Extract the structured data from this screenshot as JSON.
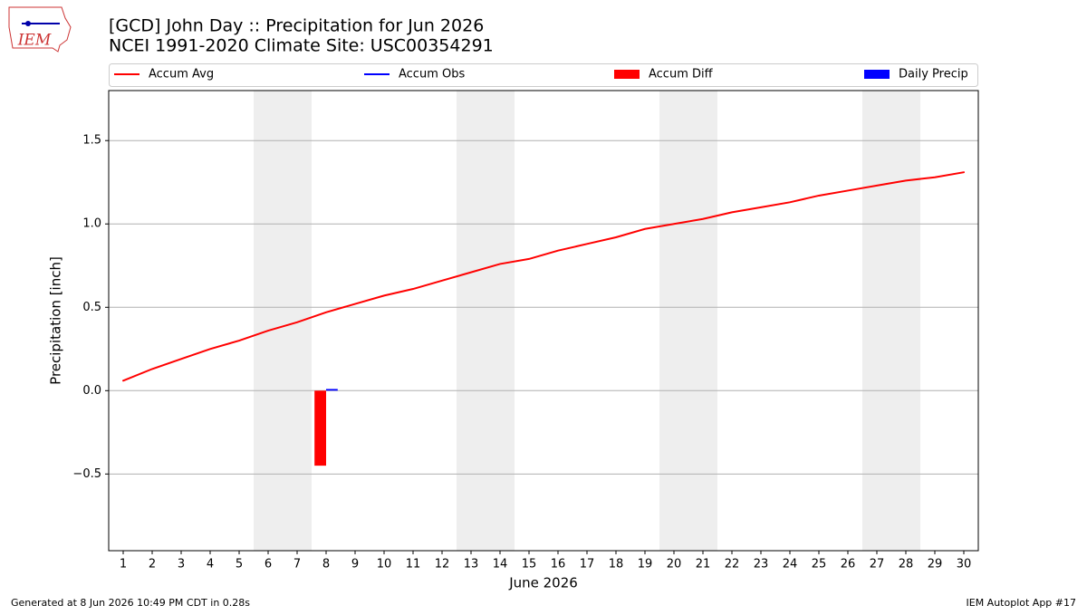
{
  "logo_text": "IEM",
  "footer": {
    "left": "Generated at 8 Jun 2026 10:49 PM CDT in 0.28s",
    "right": "IEM Autoplot App #17"
  },
  "chart_data": {
    "type": "combo",
    "title": "[GCD] John Day :: Precipitation for Jun 2026",
    "subtitle": "NCEI 1991-2020 Climate Site: USC00354291",
    "x_label": "June 2026",
    "y_label": "Precipitation [inch]",
    "x": [
      1,
      2,
      3,
      4,
      5,
      6,
      7,
      8,
      9,
      10,
      11,
      12,
      13,
      14,
      15,
      16,
      17,
      18,
      19,
      20,
      21,
      22,
      23,
      24,
      25,
      26,
      27,
      28,
      29,
      30
    ],
    "xlim": [
      0.5,
      30.5
    ],
    "xticks": [
      1,
      2,
      3,
      4,
      5,
      6,
      7,
      8,
      9,
      10,
      11,
      12,
      13,
      14,
      15,
      16,
      17,
      18,
      19,
      20,
      21,
      22,
      23,
      24,
      25,
      26,
      27,
      28,
      29,
      30
    ],
    "ylim": [
      -0.96,
      1.8
    ],
    "yticks": [
      {
        "value": -0.5,
        "label": "−0.5"
      },
      {
        "value": 0,
        "label": "0.0"
      },
      0.5,
      {
        "value": 1,
        "label": "1.0"
      },
      1.5
    ],
    "grid": true,
    "shaded_days": [
      6,
      7,
      13,
      14,
      20,
      21,
      27,
      28
    ],
    "shade_color": "#eeeeee",
    "legend": "top",
    "series": [
      {
        "name": "Accum Avg",
        "type": "line",
        "color": "#ff0000",
        "values": [
          0.06,
          0.13,
          0.19,
          0.25,
          0.3,
          0.36,
          0.41,
          0.47,
          0.52,
          0.57,
          0.61,
          0.66,
          0.71,
          0.76,
          0.79,
          0.84,
          0.88,
          0.92,
          0.97,
          1.0,
          1.03,
          1.07,
          1.1,
          1.13,
          1.17,
          1.2,
          1.23,
          1.26,
          1.28,
          1.31
        ]
      },
      {
        "name": "Accum Obs",
        "type": "line",
        "color": "#0000ff",
        "values": [
          null,
          null,
          null,
          null,
          null,
          null,
          null,
          0.01,
          null,
          null,
          null,
          null,
          null,
          null,
          null,
          null,
          null,
          null,
          null,
          null,
          null,
          null,
          null,
          null,
          null,
          null,
          null,
          null,
          null,
          null
        ]
      },
      {
        "name": "Accum Diff",
        "type": "bar",
        "color": "#ff0000",
        "values": [
          null,
          null,
          null,
          null,
          null,
          null,
          null,
          -0.45,
          null,
          null,
          null,
          null,
          null,
          null,
          null,
          null,
          null,
          null,
          null,
          null,
          null,
          null,
          null,
          null,
          null,
          null,
          null,
          null,
          null,
          null
        ]
      },
      {
        "name": "Daily Precip",
        "type": "bar",
        "color": "#0000ff",
        "values": [
          null,
          null,
          null,
          null,
          null,
          null,
          null,
          0.01,
          null,
          null,
          null,
          null,
          null,
          null,
          null,
          null,
          null,
          null,
          null,
          null,
          null,
          null,
          null,
          null,
          null,
          null,
          null,
          null,
          null,
          null
        ]
      }
    ]
  }
}
